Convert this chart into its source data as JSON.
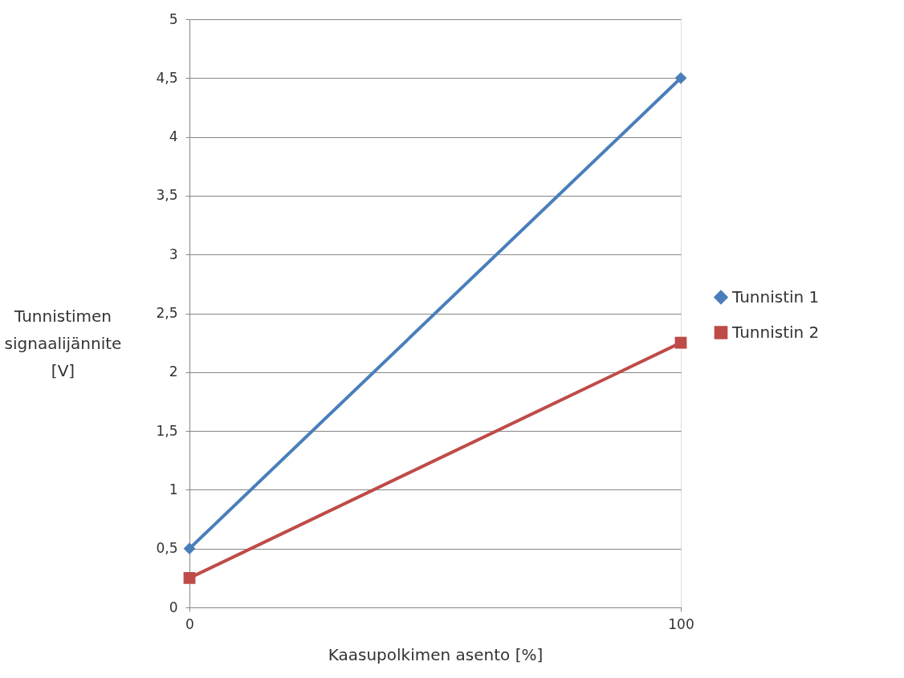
{
  "chart_data": {
    "type": "line",
    "xlabel": "Kaasupolkimen asento [%]",
    "ylabel": "Tunnistimen\nsignaalijännite\n[V]",
    "x": [
      0,
      100
    ],
    "xlim": [
      0,
      100
    ],
    "xticks": [
      0,
      100
    ],
    "ylim": [
      0,
      5
    ],
    "yticks": [
      0,
      {
        "value": 0.5,
        "label": "0,5"
      },
      1,
      {
        "value": 1.5,
        "label": "1,5"
      },
      2,
      {
        "value": 2.5,
        "label": "2,5"
      },
      3,
      {
        "value": 3.5,
        "label": "3,5"
      },
      4,
      {
        "value": 4.5,
        "label": "4,5"
      },
      5
    ],
    "grid": "y",
    "legend": "right",
    "line_style": "solid",
    "series": [
      {
        "name": "Tunnistin 1",
        "color": "#4a7ebb",
        "marker": "diamond",
        "values": [
          0.5,
          4.5
        ]
      },
      {
        "name": "Tunnistin 2",
        "color": "#be4b48",
        "marker": "square",
        "values": [
          0.25,
          2.25
        ]
      }
    ]
  }
}
